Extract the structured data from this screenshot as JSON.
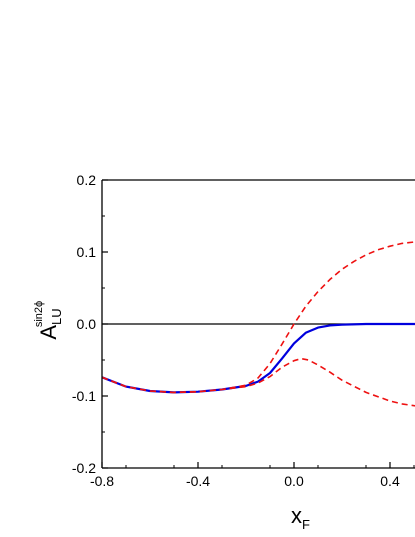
{
  "chart_data": {
    "type": "line",
    "xlabel": "x",
    "xlabel_sub": "F",
    "ylabel": "A",
    "ylabel_sub": "LU",
    "ylabel_sup": "sin2ϕ",
    "xlim": [
      -0.8,
      0.53
    ],
    "ylim": [
      -0.2,
      0.2
    ],
    "x_ticks": [
      -0.8,
      -0.4,
      0.0,
      0.4
    ],
    "x_tick_labels": [
      "-0.8",
      "-0.4",
      "0.0",
      "0.4"
    ],
    "y_ticks": [
      0.2,
      0.1,
      0.0,
      -0.1,
      -0.2
    ],
    "y_tick_labels": [
      "0.2",
      "0.1",
      "0.0",
      "-0.1",
      "-0.2"
    ],
    "grid": false,
    "zero_line": 0.0,
    "series": [
      {
        "style": "solid",
        "color": "#0000dd",
        "x": [
          -0.8,
          -0.7,
          -0.6,
          -0.5,
          -0.4,
          -0.3,
          -0.2,
          -0.15,
          -0.1,
          -0.05,
          0.0,
          0.05,
          0.1,
          0.15,
          0.2,
          0.3,
          0.4,
          0.53
        ],
        "y": [
          -0.074,
          -0.087,
          -0.093,
          -0.095,
          -0.094,
          -0.091,
          -0.086,
          -0.08,
          -0.068,
          -0.048,
          -0.027,
          -0.012,
          -0.005,
          -0.002,
          -0.001,
          0.0,
          0.0,
          0.0
        ]
      },
      {
        "style": "dashed",
        "color": "#ee1111",
        "x": [
          -0.8,
          -0.7,
          -0.6,
          -0.5,
          -0.4,
          -0.3,
          -0.2,
          -0.15,
          -0.1,
          -0.05,
          0.0,
          0.05,
          0.1,
          0.15,
          0.2,
          0.25,
          0.3,
          0.35,
          0.4,
          0.45,
          0.53
        ],
        "y": [
          -0.074,
          -0.087,
          -0.093,
          -0.095,
          -0.094,
          -0.091,
          -0.085,
          -0.075,
          -0.055,
          -0.028,
          0.0,
          0.025,
          0.045,
          0.062,
          0.076,
          0.087,
          0.096,
          0.103,
          0.108,
          0.112,
          0.115
        ]
      },
      {
        "style": "dashed",
        "color": "#ee1111",
        "x": [
          -0.8,
          -0.7,
          -0.6,
          -0.5,
          -0.4,
          -0.3,
          -0.2,
          -0.15,
          -0.1,
          -0.05,
          0.0,
          0.03,
          0.06,
          0.1,
          0.15,
          0.2,
          0.3,
          0.4,
          0.45,
          0.53
        ],
        "y": [
          -0.074,
          -0.087,
          -0.093,
          -0.095,
          -0.094,
          -0.091,
          -0.087,
          -0.082,
          -0.073,
          -0.06,
          -0.051,
          -0.048,
          -0.05,
          -0.057,
          -0.067,
          -0.078,
          -0.095,
          -0.107,
          -0.111,
          -0.115
        ]
      }
    ]
  }
}
